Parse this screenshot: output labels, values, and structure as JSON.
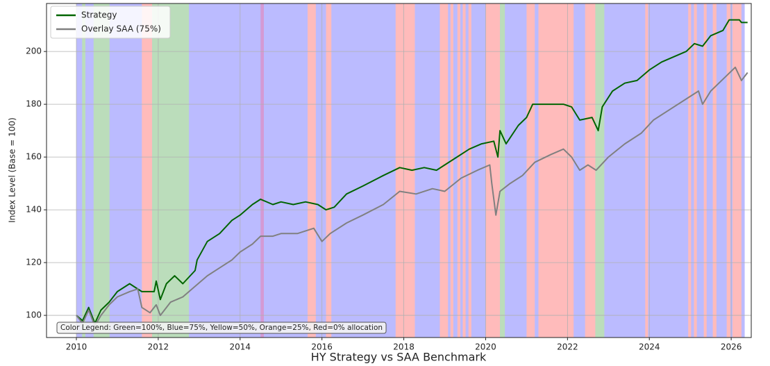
{
  "chart_data": {
    "type": "line",
    "xlabel": "HY Strategy vs SAA Benchmark",
    "ylabel": "Index Level (Base = 100)",
    "annotation": "Color Legend: Green=100%, Blue=75%, Yellow=50%, Orange=25%, Red=0% allocation",
    "xlim": [
      2009.27,
      2026.49
    ],
    "ylim": [
      91.6,
      218.2
    ],
    "xticks": [
      2010,
      2012,
      2014,
      2016,
      2018,
      2020,
      2022,
      2024,
      2026
    ],
    "yticks": [
      100,
      120,
      140,
      160,
      180,
      200
    ],
    "grid": true,
    "legend": "upper left",
    "regions": [
      {
        "start": 2010.0,
        "end": 2026.33,
        "color": "#bbbbff"
      },
      {
        "start": 2010.14,
        "end": 2010.22,
        "color": "#bbddbb"
      },
      {
        "start": 2010.42,
        "end": 2010.81,
        "color": "#bbddbb"
      },
      {
        "start": 2011.6,
        "end": 2011.85,
        "color": "#ffbbbb"
      },
      {
        "start": 2011.85,
        "end": 2012.75,
        "color": "#bbddbb"
      },
      {
        "start": 2014.5,
        "end": 2014.58,
        "color": "#d49ad4"
      },
      {
        "start": 2015.65,
        "end": 2015.85,
        "color": "#ffbbbb"
      },
      {
        "start": 2016.1,
        "end": 2016.23,
        "color": "#ffbbbb"
      },
      {
        "start": 2017.8,
        "end": 2018.27,
        "color": "#ffbbbb"
      },
      {
        "start": 2018.88,
        "end": 2019.08,
        "color": "#ffbbbb"
      },
      {
        "start": 2019.14,
        "end": 2019.21,
        "color": "#ffbbbb"
      },
      {
        "start": 2019.31,
        "end": 2019.38,
        "color": "#ffbbbb"
      },
      {
        "start": 2019.44,
        "end": 2019.51,
        "color": "#ffbbbb"
      },
      {
        "start": 2019.58,
        "end": 2019.65,
        "color": "#ffbbbb"
      },
      {
        "start": 2020.0,
        "end": 2020.35,
        "color": "#ffbbbb"
      },
      {
        "start": 2020.35,
        "end": 2020.47,
        "color": "#bbddbb"
      },
      {
        "start": 2021.0,
        "end": 2021.2,
        "color": "#ffbbbb"
      },
      {
        "start": 2021.29,
        "end": 2022.15,
        "color": "#ffbbbb"
      },
      {
        "start": 2022.43,
        "end": 2022.68,
        "color": "#ffbbbb"
      },
      {
        "start": 2022.68,
        "end": 2022.9,
        "color": "#bbddbb"
      },
      {
        "start": 2023.9,
        "end": 2023.97,
        "color": "#ffbbbb"
      },
      {
        "start": 2024.95,
        "end": 2025.02,
        "color": "#ffbbbb"
      },
      {
        "start": 2025.09,
        "end": 2025.16,
        "color": "#ffbbbb"
      },
      {
        "start": 2025.33,
        "end": 2025.4,
        "color": "#ffbbbb"
      },
      {
        "start": 2025.55,
        "end": 2025.64,
        "color": "#ffbbbb"
      },
      {
        "start": 2025.89,
        "end": 2025.98,
        "color": "#ffbbbb"
      },
      {
        "start": 2026.03,
        "end": 2026.25,
        "color": "#ffbbbb"
      }
    ],
    "series": [
      {
        "name": "Strategy",
        "color": "#006400",
        "x": [
          2010.0,
          2010.15,
          2010.3,
          2010.45,
          2010.6,
          2010.8,
          2011.0,
          2011.3,
          2011.5,
          2011.6,
          2011.9,
          2011.95,
          2012.05,
          2012.2,
          2012.4,
          2012.6,
          2012.9,
          2012.95,
          2013.2,
          2013.5,
          2013.8,
          2014.0,
          2014.3,
          2014.5,
          2014.8,
          2015.0,
          2015.3,
          2015.6,
          2015.9,
          2016.1,
          2016.3,
          2016.6,
          2017.0,
          2017.5,
          2017.9,
          2018.2,
          2018.5,
          2018.8,
          2019.0,
          2019.3,
          2019.6,
          2019.9,
          2020.2,
          2020.3,
          2020.35,
          2020.5,
          2020.8,
          2021.0,
          2021.15,
          2021.9,
          2022.1,
          2022.3,
          2022.6,
          2022.75,
          2022.85,
          2023.1,
          2023.4,
          2023.7,
          2024.0,
          2024.3,
          2024.6,
          2024.9,
          2025.1,
          2025.3,
          2025.5,
          2025.8,
          2025.95,
          2026.2,
          2026.25,
          2026.4
        ],
        "values": [
          100,
          98,
          103,
          97,
          102,
          105,
          109,
          112,
          110,
          109,
          109,
          113,
          106,
          112,
          115,
          112,
          117,
          121,
          128,
          131,
          136,
          138,
          142,
          144,
          142,
          143,
          142,
          143,
          142,
          140,
          141,
          146,
          149,
          153,
          156,
          155,
          156,
          155,
          157,
          160,
          163,
          165,
          166,
          160,
          170,
          165,
          172,
          175,
          180,
          180,
          179,
          174,
          175,
          170,
          179,
          185,
          188,
          189,
          193,
          196,
          198,
          200,
          203,
          202,
          206,
          208,
          212,
          212,
          211,
          211
        ]
      },
      {
        "name": "Overlay SAA (75%)",
        "color": "#808080",
        "x": [
          2010.0,
          2010.15,
          2010.3,
          2010.45,
          2010.6,
          2010.8,
          2011.0,
          2011.3,
          2011.5,
          2011.6,
          2011.8,
          2011.95,
          2012.05,
          2012.3,
          2012.6,
          2012.9,
          2013.2,
          2013.5,
          2013.8,
          2014.0,
          2014.3,
          2014.5,
          2014.8,
          2015.0,
          2015.4,
          2015.8,
          2016.0,
          2016.2,
          2016.6,
          2017.0,
          2017.5,
          2017.9,
          2018.3,
          2018.7,
          2019.0,
          2019.4,
          2019.8,
          2020.1,
          2020.15,
          2020.25,
          2020.35,
          2020.6,
          2020.9,
          2021.2,
          2021.6,
          2021.9,
          2022.1,
          2022.3,
          2022.5,
          2022.7,
          2023.0,
          2023.4,
          2023.8,
          2024.1,
          2024.5,
          2024.9,
          2025.2,
          2025.3,
          2025.5,
          2025.9,
          2026.1,
          2026.25,
          2026.4
        ],
        "values": [
          100,
          97,
          102,
          96,
          100,
          104,
          107,
          109,
          110,
          103,
          101,
          104,
          100,
          105,
          107,
          111,
          115,
          118,
          121,
          124,
          127,
          130,
          130,
          131,
          131,
          133,
          128,
          131,
          135,
          138,
          142,
          147,
          146,
          148,
          147,
          152,
          155,
          157,
          150,
          138,
          147,
          150,
          153,
          158,
          161,
          163,
          160,
          155,
          157,
          155,
          160,
          165,
          169,
          174,
          178,
          182,
          185,
          180,
          185,
          191,
          194,
          189,
          192
        ]
      }
    ]
  }
}
